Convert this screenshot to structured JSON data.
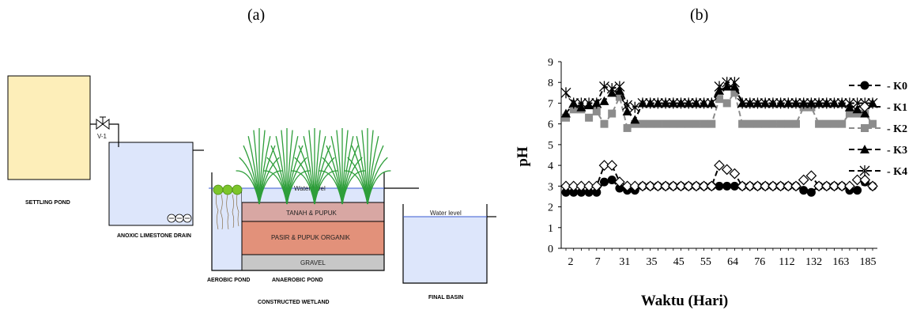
{
  "panels": {
    "a": "(a)",
    "b": "(b)"
  },
  "diagram": {
    "labels": {
      "settling_pond": "SETTLING POND",
      "valve": "V-1",
      "anoxic_drain": "ANOXIC LIMESTONE DRAIN",
      "aerobic_pond": "AEROBIC POND",
      "anaerobic_pond": "ANAEROBIC POND",
      "constructed_wetland": "CONSTRUCTED WETLAND",
      "final_basin": "FINAL BASIN",
      "water_level_wetland": "Water level",
      "water_level_final": "Water level",
      "layer_top": "TANAH & PUPUK",
      "layer_mid": "PASIR & PUPUK ORGANIK",
      "layer_bottom": "GRAVEL"
    },
    "colors": {
      "settling": "#fdeeb9",
      "water": "#dde6fb",
      "tanah": "#d8a7a3",
      "pasir": "#e2917a",
      "gravel": "#c7c7c7",
      "plant": "#2e9e3a",
      "algae": "#7cc52b"
    }
  },
  "chart_data": {
    "type": "line",
    "xlabel": "Waktu (Hari)",
    "ylabel": "pH",
    "ylim": [
      0,
      9
    ],
    "yticks": [
      0,
      1,
      2,
      3,
      4,
      5,
      6,
      7,
      8,
      9
    ],
    "xtick_labels": [
      "2",
      "7",
      "31",
      "35",
      "45",
      "55",
      "64",
      "76",
      "112",
      "132",
      "163",
      "185"
    ],
    "legend_position": "right",
    "grid": false,
    "series": [
      {
        "name": "K0",
        "color": "#000000",
        "marker": "circle",
        "values": [
          2.7,
          2.7,
          2.7,
          2.7,
          2.7,
          3.2,
          3.3,
          2.9,
          2.8,
          2.8,
          3.0,
          3.0,
          3.0,
          3.0,
          3.0,
          3.0,
          3.0,
          3.0,
          3.0,
          3.0,
          3.0,
          3.0,
          3.0,
          3.0,
          3.0,
          3.0,
          3.0,
          3.0,
          3.0,
          3.0,
          3.0,
          2.8,
          2.7,
          3.0,
          3.0,
          3.0,
          3.0,
          2.8,
          2.8,
          3.2,
          3.0
        ]
      },
      {
        "name": "K1",
        "color": "#000000",
        "marker": "diamond",
        "values": [
          3.0,
          3.0,
          3.0,
          3.0,
          3.0,
          4.0,
          4.0,
          3.2,
          3.0,
          3.0,
          3.0,
          3.0,
          3.0,
          3.0,
          3.0,
          3.0,
          3.0,
          3.0,
          3.0,
          3.0,
          4.0,
          3.8,
          3.6,
          3.0,
          3.0,
          3.0,
          3.0,
          3.0,
          3.0,
          3.0,
          3.0,
          3.3,
          3.5,
          3.0,
          3.0,
          3.0,
          3.0,
          3.0,
          3.3,
          3.3,
          3.0
        ]
      },
      {
        "name": "K2",
        "color": "#8c8c8c",
        "marker": "square",
        "values": [
          6.3,
          6.7,
          6.7,
          6.3,
          6.6,
          6.0,
          6.5,
          7.3,
          5.8,
          6.0,
          6.0,
          6.0,
          6.0,
          6.0,
          6.0,
          6.0,
          6.0,
          6.0,
          6.0,
          6.0,
          7.2,
          7.0,
          7.5,
          6.0,
          6.0,
          6.0,
          6.0,
          6.0,
          6.0,
          6.0,
          6.0,
          6.8,
          6.8,
          6.0,
          6.0,
          6.0,
          6.0,
          6.5,
          6.5,
          6.5,
          6.0
        ]
      },
      {
        "name": "K3",
        "color": "#000000",
        "marker": "triangle",
        "values": [
          6.5,
          7.0,
          6.8,
          6.9,
          7.0,
          7.1,
          7.5,
          7.6,
          6.6,
          6.2,
          7.0,
          7.0,
          7.0,
          7.0,
          7.0,
          7.0,
          7.0,
          7.0,
          7.0,
          7.0,
          7.6,
          7.8,
          7.8,
          7.0,
          7.0,
          7.0,
          7.0,
          7.0,
          7.0,
          7.0,
          7.0,
          7.0,
          7.0,
          7.0,
          7.0,
          7.0,
          7.0,
          6.8,
          6.7,
          6.5,
          7.0
        ]
      },
      {
        "name": "K4",
        "color": "#000000",
        "marker": "star",
        "values": [
          7.5,
          7.0,
          7.0,
          7.0,
          7.0,
          7.8,
          7.7,
          7.8,
          6.9,
          6.8,
          7.0,
          7.0,
          7.0,
          7.0,
          7.0,
          7.0,
          7.0,
          7.0,
          7.0,
          7.0,
          7.8,
          8.0,
          8.0,
          7.0,
          7.0,
          7.0,
          7.0,
          7.0,
          7.0,
          7.0,
          7.0,
          7.0,
          7.0,
          7.0,
          7.0,
          7.0,
          7.0,
          7.0,
          7.0,
          7.0,
          7.0
        ]
      }
    ]
  }
}
